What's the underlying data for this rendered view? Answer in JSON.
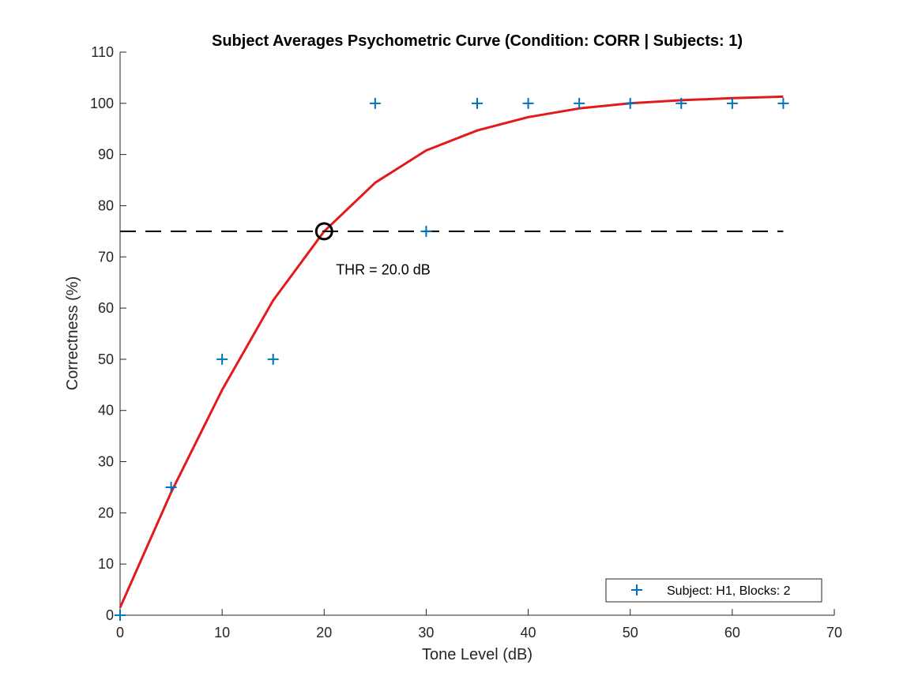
{
  "chart_data": {
    "type": "scatter",
    "title": "Subject Averages Psychometric Curve (Condition: CORR | Subjects: 1)",
    "xlabel": "Tone Level (dB)",
    "ylabel": "Correctness (%)",
    "xlim": [
      0,
      70
    ],
    "ylim": [
      0,
      110
    ],
    "xticks": [
      0,
      10,
      20,
      30,
      40,
      50,
      60,
      70
    ],
    "yticks": [
      0,
      10,
      20,
      30,
      40,
      50,
      60,
      70,
      80,
      90,
      100,
      110
    ],
    "grid": false,
    "legend_position": "bottom-right",
    "series": [
      {
        "name": "Subject: H1, Blocks: 2",
        "kind": "scatter",
        "marker": "plus",
        "color": "#0072BD",
        "x": [
          0,
          5,
          10,
          15,
          25,
          30,
          35,
          40,
          45,
          50,
          55,
          60,
          65
        ],
        "y": [
          0,
          25,
          50,
          50,
          100,
          75,
          100,
          100,
          100,
          100,
          100,
          100,
          100
        ]
      },
      {
        "kind": "line",
        "color": "#E31A1C",
        "x": [
          0,
          5,
          10,
          15,
          20,
          25,
          30,
          35,
          40,
          45,
          50,
          55,
          60,
          65
        ],
        "y": [
          1.5,
          24,
          44,
          61.5,
          75,
          84.5,
          90.8,
          94.7,
          97.3,
          99,
          100,
          100.6,
          101,
          101.3
        ]
      },
      {
        "kind": "threshold-line",
        "style": "dashed",
        "color": "#000000",
        "x": [
          0,
          65
        ],
        "y": [
          75,
          75
        ]
      }
    ],
    "threshold_marker": {
      "x": 20,
      "y": 75,
      "marker": "circle",
      "color": "#000000"
    },
    "annotations": [
      {
        "text": "THR = 20.0 dB",
        "x": 21,
        "y": 67.5
      }
    ]
  }
}
